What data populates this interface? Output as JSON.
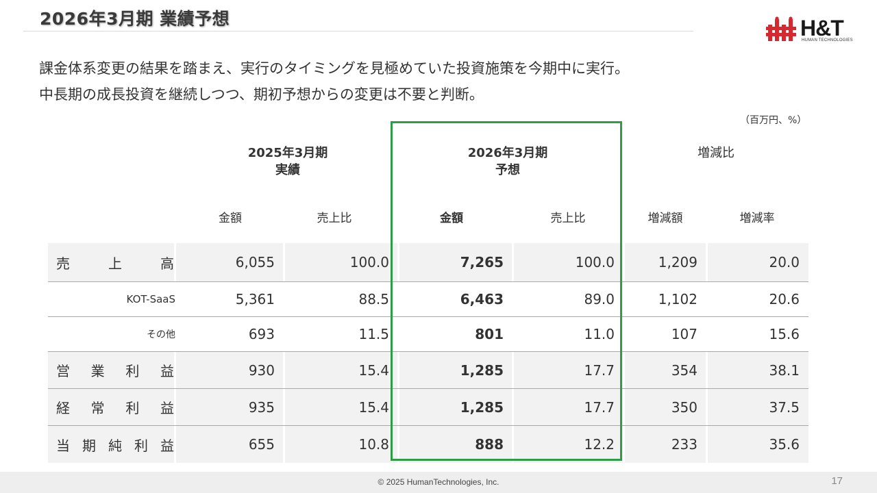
{
  "header": {
    "title": "2026年3月期 業績予想",
    "logo_text": "H&T",
    "logo_sub": "HUMAN TECHNOLOGIES"
  },
  "lead": {
    "line1": "課金体系変更の結果を踏まえ、実行のタイミングを見極めていた投資施策を今期中に実行。",
    "line2": "中長期の成長投資を継続しつつ、期初予想からの変更は不要と判断。"
  },
  "unit_note": "（百万円、%）",
  "columns": {
    "fy2025_line1": "2025年3月期",
    "fy2025_line2": "実績",
    "fy2026_line1": "2026年3月期",
    "fy2026_line2": "予想",
    "change": "増減比",
    "amount": "金額",
    "ratio": "売上比",
    "change_amount": "増減額",
    "change_rate": "増減率"
  },
  "rows": [
    {
      "label_chars": [
        "売",
        "上",
        "高"
      ],
      "a25": "6,055",
      "r25": "100.0",
      "a26": "7,265",
      "r26": "100.0",
      "diff": "1,209",
      "rate": "20.0"
    },
    {
      "label": "KOT-SaaS",
      "a25": "5,361",
      "r25": "88.5",
      "a26": "6,463",
      "r26": "89.0",
      "diff": "1,102",
      "rate": "20.6"
    },
    {
      "label": "その他",
      "a25": "693",
      "r25": "11.5",
      "a26": "801",
      "r26": "11.0",
      "diff": "107",
      "rate": "15.6"
    },
    {
      "label_chars": [
        "営",
        "業",
        "利",
        "益"
      ],
      "a25": "930",
      "r25": "15.4",
      "a26": "1,285",
      "r26": "17.7",
      "diff": "354",
      "rate": "38.1"
    },
    {
      "label_chars": [
        "経",
        "常",
        "利",
        "益"
      ],
      "a25": "935",
      "r25": "15.4",
      "a26": "1,285",
      "r26": "17.7",
      "diff": "350",
      "rate": "37.5"
    },
    {
      "label_chars": [
        "当",
        "期",
        "純",
        "利",
        "益"
      ],
      "a25": "655",
      "r25": "10.8",
      "a26": "888",
      "r26": "12.2",
      "diff": "233",
      "rate": "35.6"
    }
  ],
  "footer": {
    "copyright": "© 2025  HumanTechnologies, Inc.",
    "page": "17"
  },
  "colors": {
    "highlight_border": "#2f9d47",
    "logo_red": "#d7282f"
  }
}
